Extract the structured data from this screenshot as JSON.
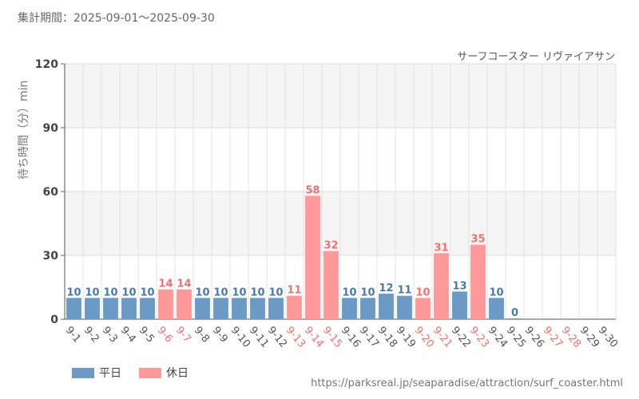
{
  "header": {
    "period": "集計期間：2025-09-01～2025-09-30"
  },
  "chart_data": {
    "type": "bar",
    "title": "サーフコースター リヴァイアサン",
    "xlabel": "",
    "ylabel": "待ち時間（分）min",
    "ylim": [
      0,
      120
    ],
    "yticks": [
      0,
      30,
      60,
      90,
      120
    ],
    "categories": [
      "9-1",
      "9-2",
      "9-3",
      "9-4",
      "9-5",
      "9-6",
      "9-7",
      "9-8",
      "9-9",
      "9-10",
      "9-11",
      "9-12",
      "9-13",
      "9-14",
      "9-15",
      "9-16",
      "9-17",
      "9-18",
      "9-19",
      "9-20",
      "9-21",
      "9-22",
      "9-23",
      "9-24",
      "9-25",
      "9-26",
      "9-27",
      "9-28",
      "9-29",
      "9-30"
    ],
    "values": [
      10,
      10,
      10,
      10,
      10,
      14,
      14,
      10,
      10,
      10,
      10,
      10,
      11,
      58,
      32,
      10,
      10,
      12,
      11,
      10,
      31,
      13,
      35,
      10,
      0,
      null,
      null,
      null,
      null,
      null
    ],
    "day_type": [
      "weekday",
      "weekday",
      "weekday",
      "weekday",
      "weekday",
      "holiday",
      "holiday",
      "weekday",
      "weekday",
      "weekday",
      "weekday",
      "weekday",
      "holiday",
      "holiday",
      "holiday",
      "weekday",
      "weekday",
      "weekday",
      "weekday",
      "holiday",
      "holiday",
      "weekday",
      "holiday",
      "weekday",
      "weekday",
      "weekday",
      "holiday",
      "holiday",
      "weekday",
      "weekday"
    ],
    "legend": [
      {
        "key": "weekday",
        "label": "平日",
        "color": "#6b9ac4"
      },
      {
        "key": "holiday",
        "label": "休日",
        "color": "#ff9999"
      }
    ],
    "label_colors": {
      "weekday": "#4a7aa8",
      "holiday": "#f07070"
    },
    "tick_colors": {
      "weekday": "#555555",
      "holiday": "#f07070"
    }
  },
  "footer": {
    "source": "https://parksreal.jp/seaparadise/attraction/surf_coaster.html"
  }
}
